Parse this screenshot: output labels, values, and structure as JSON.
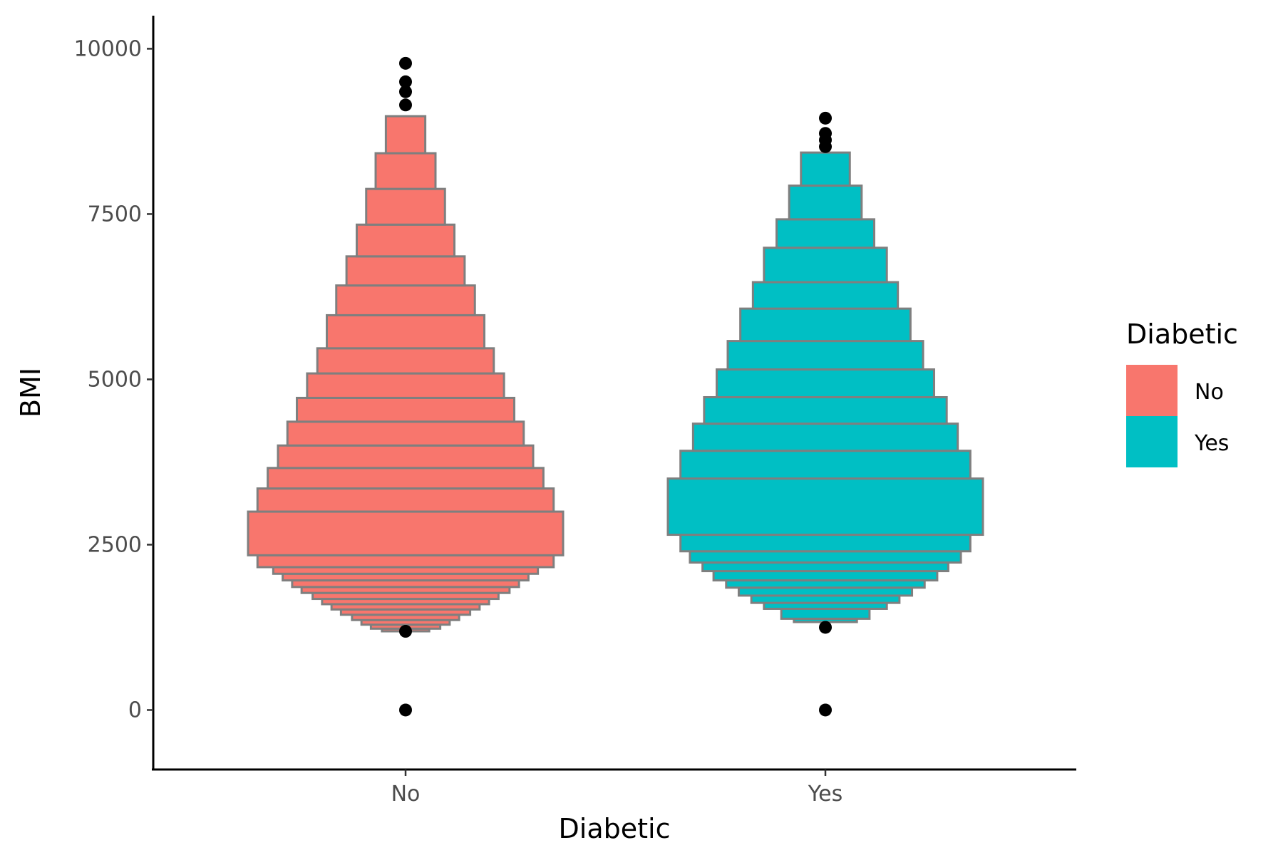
{
  "chart_data": {
    "type": "violin-histogram",
    "xlabel": "Diabetic",
    "ylabel": "BMI",
    "categories": [
      "No",
      "Yes"
    ],
    "ylim": [
      -900,
      10500
    ],
    "y_ticks": [
      0,
      2500,
      5000,
      7500,
      10000
    ],
    "y_tick_labels": [
      "0",
      "2500",
      "5000",
      "7500",
      "10000"
    ],
    "grid": false,
    "legend": {
      "title": "Diabetic",
      "placement": "right",
      "entries": [
        {
          "label": "No",
          "color": "#F8766D"
        },
        {
          "label": "Yes",
          "color": "#00BFC4"
        }
      ]
    },
    "colors": {
      "No": "#F8766D",
      "Yes": "#00BFC4",
      "outline": "#7f7f7f",
      "point": "#000000"
    },
    "series": [
      {
        "category": "No",
        "bands": [
          {
            "y0": 1190,
            "y1": 1230,
            "relative_width": 0.15
          },
          {
            "y0": 1230,
            "y1": 1290,
            "relative_width": 0.22
          },
          {
            "y0": 1290,
            "y1": 1360,
            "relative_width": 0.28
          },
          {
            "y0": 1360,
            "y1": 1440,
            "relative_width": 0.34
          },
          {
            "y0": 1440,
            "y1": 1520,
            "relative_width": 0.41
          },
          {
            "y0": 1520,
            "y1": 1600,
            "relative_width": 0.47
          },
          {
            "y0": 1600,
            "y1": 1680,
            "relative_width": 0.53
          },
          {
            "y0": 1680,
            "y1": 1770,
            "relative_width": 0.59
          },
          {
            "y0": 1770,
            "y1": 1860,
            "relative_width": 0.66
          },
          {
            "y0": 1860,
            "y1": 1960,
            "relative_width": 0.72
          },
          {
            "y0": 1960,
            "y1": 2060,
            "relative_width": 0.78
          },
          {
            "y0": 2060,
            "y1": 2160,
            "relative_width": 0.84
          },
          {
            "y0": 2160,
            "y1": 2340,
            "relative_width": 0.94
          },
          {
            "y0": 2340,
            "y1": 3000,
            "relative_width": 1.0
          },
          {
            "y0": 3000,
            "y1": 3350,
            "relative_width": 0.94
          },
          {
            "y0": 3350,
            "y1": 3660,
            "relative_width": 0.875
          },
          {
            "y0": 3660,
            "y1": 4000,
            "relative_width": 0.81
          },
          {
            "y0": 4000,
            "y1": 4360,
            "relative_width": 0.75
          },
          {
            "y0": 4360,
            "y1": 4720,
            "relative_width": 0.69
          },
          {
            "y0": 4720,
            "y1": 5090,
            "relative_width": 0.625
          },
          {
            "y0": 5090,
            "y1": 5470,
            "relative_width": 0.56
          },
          {
            "y0": 5470,
            "y1": 5970,
            "relative_width": 0.5
          },
          {
            "y0": 5970,
            "y1": 6420,
            "relative_width": 0.44
          },
          {
            "y0": 6420,
            "y1": 6860,
            "relative_width": 0.375
          },
          {
            "y0": 6860,
            "y1": 7340,
            "relative_width": 0.31
          },
          {
            "y0": 7340,
            "y1": 7880,
            "relative_width": 0.25
          },
          {
            "y0": 7880,
            "y1": 8420,
            "relative_width": 0.19
          },
          {
            "y0": 8420,
            "y1": 8980,
            "relative_width": 0.125
          }
        ],
        "outliers": [
          9780,
          9500,
          9350,
          9150,
          1190,
          0
        ]
      },
      {
        "category": "Yes",
        "bands": [
          {
            "y0": 1330,
            "y1": 1380,
            "relative_width": 0.2
          },
          {
            "y0": 1380,
            "y1": 1530,
            "relative_width": 0.28
          },
          {
            "y0": 1530,
            "y1": 1620,
            "relative_width": 0.39
          },
          {
            "y0": 1620,
            "y1": 1730,
            "relative_width": 0.47
          },
          {
            "y0": 1730,
            "y1": 1850,
            "relative_width": 0.55
          },
          {
            "y0": 1850,
            "y1": 1960,
            "relative_width": 0.63
          },
          {
            "y0": 1960,
            "y1": 2100,
            "relative_width": 0.71
          },
          {
            "y0": 2100,
            "y1": 2230,
            "relative_width": 0.78
          },
          {
            "y0": 2230,
            "y1": 2400,
            "relative_width": 0.86
          },
          {
            "y0": 2400,
            "y1": 2650,
            "relative_width": 0.92
          },
          {
            "y0": 2650,
            "y1": 3500,
            "relative_width": 1.0
          },
          {
            "y0": 3500,
            "y1": 3920,
            "relative_width": 0.92
          },
          {
            "y0": 3920,
            "y1": 4330,
            "relative_width": 0.84
          },
          {
            "y0": 4330,
            "y1": 4730,
            "relative_width": 0.77
          },
          {
            "y0": 4730,
            "y1": 5150,
            "relative_width": 0.69
          },
          {
            "y0": 5150,
            "y1": 5580,
            "relative_width": 0.62
          },
          {
            "y0": 5580,
            "y1": 6070,
            "relative_width": 0.54
          },
          {
            "y0": 6070,
            "y1": 6470,
            "relative_width": 0.46
          },
          {
            "y0": 6470,
            "y1": 6990,
            "relative_width": 0.39
          },
          {
            "y0": 6990,
            "y1": 7420,
            "relative_width": 0.31
          },
          {
            "y0": 7420,
            "y1": 7930,
            "relative_width": 0.23
          },
          {
            "y0": 7930,
            "y1": 8430,
            "relative_width": 0.155
          }
        ],
        "outliers": [
          8950,
          8720,
          8620,
          8520,
          1250,
          0
        ]
      }
    ]
  }
}
